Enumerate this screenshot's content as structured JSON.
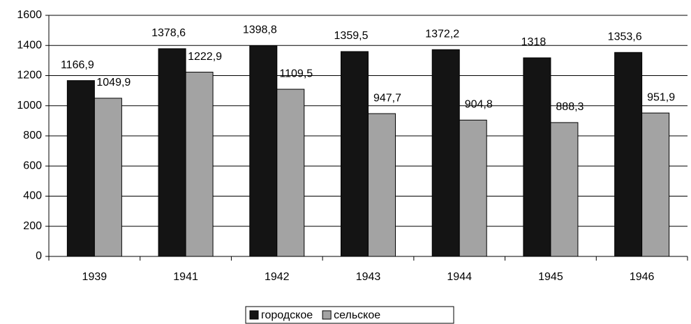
{
  "chart_data": {
    "type": "bar",
    "categories": [
      "1939",
      "1941",
      "1942",
      "1943",
      "1944",
      "1945",
      "1946"
    ],
    "series": [
      {
        "name": "городское",
        "color": "#141414",
        "values": [
          1166.9,
          1378.6,
          1398.8,
          1359.5,
          1372.2,
          1318,
          1353.6
        ],
        "value_labels": [
          "1166,9",
          "1378,6",
          "1398,8",
          "1359,5",
          "1372,2",
          "1318",
          "1353,6"
        ]
      },
      {
        "name": "сельское",
        "color": "#a3a3a3",
        "values": [
          1049.9,
          1222.9,
          1109.5,
          947.7,
          904.8,
          888.3,
          951.9
        ],
        "value_labels": [
          "1049,9",
          "1222,9",
          "1109,5",
          "947,7",
          "904,8",
          "888,3",
          "951,9"
        ]
      }
    ],
    "ylim": [
      0,
      1600
    ],
    "yticks": [
      0,
      200,
      400,
      600,
      800,
      1000,
      1200,
      1400,
      1600
    ],
    "grid": true,
    "legend": "bottom"
  }
}
